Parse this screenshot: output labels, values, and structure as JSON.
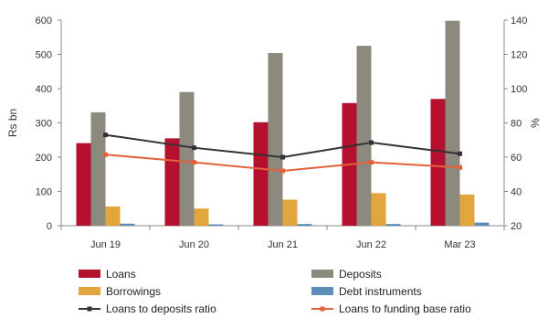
{
  "chart_data": {
    "type": "bar",
    "categories": [
      "Jun 19",
      "Jun 20",
      "Jun 21",
      "Jun 22",
      "Mar 23"
    ],
    "ylabel_left": "Rs bn",
    "ylabel_right": "%",
    "ylim_left": [
      0,
      600
    ],
    "yticks_left": [
      0,
      100,
      200,
      300,
      400,
      500,
      600
    ],
    "ylim_right": [
      20,
      140
    ],
    "yticks_right": [
      20,
      40,
      60,
      80,
      100,
      120,
      140
    ],
    "grid": false,
    "legend_position": "bottom",
    "bar_series": [
      {
        "name": "Loans",
        "color": "#b5112f",
        "values": [
          241,
          255,
          302,
          358,
          370
        ]
      },
      {
        "name": "Deposits",
        "color": "#8c8a7e",
        "values": [
          331,
          390,
          504,
          525,
          598
        ]
      },
      {
        "name": "Borrowings",
        "color": "#e3a63c",
        "values": [
          56,
          50,
          76,
          95,
          91
        ]
      },
      {
        "name": "Debt instruments",
        "color": "#5b8db8",
        "values": [
          6,
          4,
          5,
          5,
          9
        ]
      }
    ],
    "line_series": [
      {
        "name": "Loans to deposits ratio",
        "color": "#333333",
        "axis": "right",
        "values": [
          73,
          65.5,
          60,
          68.5,
          62
        ]
      },
      {
        "name": "Loans to funding base ratio",
        "color": "#e2623c",
        "axis": "right",
        "values": [
          61.5,
          57,
          52,
          57,
          54
        ]
      }
    ],
    "legend": [
      {
        "label": "Loans",
        "kind": "bar",
        "color": "#b5112f"
      },
      {
        "label": "Deposits",
        "kind": "bar",
        "color": "#8c8a7e"
      },
      {
        "label": "Borrowings",
        "kind": "bar",
        "color": "#e3a63c"
      },
      {
        "label": "Debt instruments",
        "kind": "bar",
        "color": "#5b8db8"
      },
      {
        "label": "Loans to deposits ratio",
        "kind": "line",
        "color": "#333333"
      },
      {
        "label": "Loans to funding base ratio",
        "kind": "line",
        "color": "#e2623c"
      }
    ]
  }
}
